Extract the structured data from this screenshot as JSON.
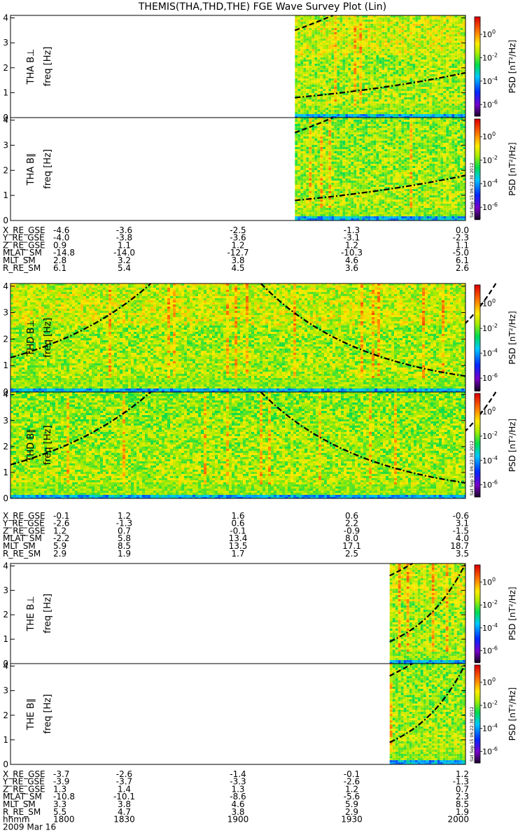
{
  "title": "THEMIS(THA,THD,THE) FGE Wave Survey Plot (Lin)",
  "date_label": "2009 Mar 16",
  "time_row_label": "hhmm",
  "time_ticks": [
    "1800",
    "1830",
    "1900",
    "1930",
    "2000"
  ],
  "stamp": "Sat Sep 15 06:22:30 2012",
  "colorbar": {
    "label": "PSD [nT²/Hz]",
    "tick_labels": [
      "10^0",
      "10^-2",
      "10^-4",
      "10^-6"
    ],
    "range_log10": [
      -7,
      1.5
    ]
  },
  "chart_data": {
    "type": "heatmap",
    "x_range": [
      "18:00",
      "20:00"
    ],
    "panels": [
      {
        "id": "tha-bperp",
        "ylabel": "THA B⊥",
        "ylabel2": "freq [Hz]",
        "yticks": [
          "0",
          "1",
          "2",
          "3",
          "4"
        ],
        "ylim": [
          0,
          4.1
        ],
        "data_start": 1915,
        "curves": [
          {
            "style": "dashdot",
            "x": [
              1915,
              2000
            ],
            "y": [
              0.8,
              1.8
            ]
          },
          {
            "style": "dashed",
            "x": [
              1915,
              1925
            ],
            "y": [
              3.5,
              4.1
            ]
          }
        ]
      },
      {
        "id": "tha-bpar",
        "ylabel": "THA B∥",
        "ylabel2": "freq [Hz]",
        "yticks": [
          "0",
          "1",
          "2",
          "3",
          "4"
        ],
        "ylim": [
          0,
          4.1
        ],
        "data_start": 1915,
        "curves": [
          {
            "style": "dashdot",
            "x": [
              1915,
              2000
            ],
            "y": [
              0.8,
              1.8
            ]
          },
          {
            "style": "dashed",
            "x": [
              1915,
              1925
            ],
            "y": [
              3.5,
              4.1
            ]
          }
        ]
      },
      {
        "id": "thd-bperp",
        "ylabel": "THD B⊥",
        "ylabel2": "freq [Hz]",
        "yticks": [
          "0",
          "1",
          "2",
          "3",
          "4"
        ],
        "ylim": [
          0,
          4.1
        ],
        "data_start": 1800,
        "curves": [
          {
            "style": "dashdot",
            "x": [
              1800,
              1837
            ],
            "y": [
              1.3,
              4.1
            ]
          },
          {
            "style": "dashdot",
            "x": [
              1906,
              2000
            ],
            "y": [
              4.1,
              0.6
            ]
          },
          {
            "style": "dashed",
            "x": [
              1968,
              2000
            ],
            "y": [
              4.1,
              2.6
            ]
          }
        ]
      },
      {
        "id": "thd-bpar",
        "ylabel": "THD B∥",
        "ylabel2": "freq [Hz]",
        "yticks": [
          "0",
          "1",
          "2",
          "3",
          "4"
        ],
        "ylim": [
          0,
          4.1
        ],
        "data_start": 1800,
        "curves": [
          {
            "style": "dashdot",
            "x": [
              1800,
              1837
            ],
            "y": [
              1.3,
              4.1
            ]
          },
          {
            "style": "dashdot",
            "x": [
              1906,
              2000
            ],
            "y": [
              4.1,
              0.6
            ]
          },
          {
            "style": "dashed",
            "x": [
              1968,
              2000
            ],
            "y": [
              4.1,
              2.6
            ]
          }
        ]
      },
      {
        "id": "the-bperp",
        "ylabel": "THE B⊥",
        "ylabel2": "freq [Hz]",
        "yticks": [
          "0",
          "1",
          "2",
          "3",
          "4"
        ],
        "ylim": [
          0,
          4.1
        ],
        "data_start": 1940,
        "curves": [
          {
            "style": "dashdot",
            "x": [
              1940,
              2000
            ],
            "y": [
              0.9,
              4.1
            ]
          },
          {
            "style": "dashed",
            "x": [
              1940,
              1946
            ],
            "y": [
              3.6,
              4.1
            ]
          }
        ]
      },
      {
        "id": "the-bpar",
        "ylabel": "THE B∥",
        "ylabel2": "freq [Hz]",
        "yticks": [
          "0",
          "1",
          "2",
          "3",
          "4"
        ],
        "ylim": [
          0,
          4.1
        ],
        "data_start": 1940,
        "curves": [
          {
            "style": "dashdot",
            "x": [
              1940,
              2000
            ],
            "y": [
              0.9,
              4.1
            ]
          },
          {
            "style": "dashed",
            "x": [
              1940,
              1946
            ],
            "y": [
              3.6,
              4.1
            ]
          }
        ]
      }
    ],
    "ephemeris": [
      {
        "probe": "THA",
        "rows": [
          {
            "label": "X_RE_GSE",
            "values": [
              "-4.6",
              "-3.6",
              "-2.5",
              "-1.3",
              "0.0"
            ]
          },
          {
            "label": "Y_RE_GSE",
            "values": [
              "-4.0",
              "-3.8",
              "-3.6",
              "-3.1",
              "-2.3"
            ]
          },
          {
            "label": "Z_RE_GSE",
            "values": [
              "0.9",
              "1.1",
              "1.2",
              "1.2",
              "1.1"
            ]
          },
          {
            "label": "MLAT_SM",
            "values": [
              "-14.8",
              "-14.0",
              "-12.7",
              "-10.3",
              "-5.0"
            ]
          },
          {
            "label": "MLT_SM",
            "values": [
              "2.8",
              "3.2",
              "3.8",
              "4.6",
              "6.1"
            ]
          },
          {
            "label": "R_RE_SM",
            "values": [
              "6.1",
              "5.4",
              "4.5",
              "3.6",
              "2.6"
            ]
          }
        ]
      },
      {
        "probe": "THD",
        "rows": [
          {
            "label": "X_RE_GSE",
            "values": [
              "-0.1",
              "1.2",
              "1.6",
              "0.6",
              "-0.6"
            ]
          },
          {
            "label": "Y_RE_GSE",
            "values": [
              "-2.6",
              "-1.3",
              "0.6",
              "2.2",
              "3.1"
            ]
          },
          {
            "label": "Z_RE_GSE",
            "values": [
              "1.2",
              "0.7",
              "-0.1",
              "-0.9",
              "-1.5"
            ]
          },
          {
            "label": "MLAT_SM",
            "values": [
              "-2.2",
              "5.8",
              "13.4",
              "8.0",
              "4.0"
            ]
          },
          {
            "label": "MLT_SM",
            "values": [
              "5.9",
              "8.5",
              "13.5",
              "17.1",
              "18.7"
            ]
          },
          {
            "label": "R_RE_SM",
            "values": [
              "2.9",
              "1.9",
              "1.7",
              "2.5",
              "3.5"
            ]
          }
        ]
      },
      {
        "probe": "THE",
        "rows": [
          {
            "label": "X_RE_GSE",
            "values": [
              "-3.7",
              "-2.6",
              "-1.4",
              "-0.1",
              "1.2"
            ]
          },
          {
            "label": "Y_RE_GSE",
            "values": [
              "-3.9",
              "-3.7",
              "-3.3",
              "-2.6",
              "-1.3"
            ]
          },
          {
            "label": "Z_RE_GSE",
            "values": [
              "1.3",
              "1.4",
              "1.3",
              "1.2",
              "0.7"
            ]
          },
          {
            "label": "MLAT_SM",
            "values": [
              "-10.8",
              "-10.1",
              "-8.6",
              "-5.6",
              "2.3"
            ]
          },
          {
            "label": "MLT_SM",
            "values": [
              "3.3",
              "3.8",
              "4.6",
              "5.9",
              "8.5"
            ]
          },
          {
            "label": "R_RE_SM",
            "values": [
              "5.5",
              "4.7",
              "3.8",
              "2.9",
              "1.9"
            ]
          }
        ]
      }
    ]
  }
}
